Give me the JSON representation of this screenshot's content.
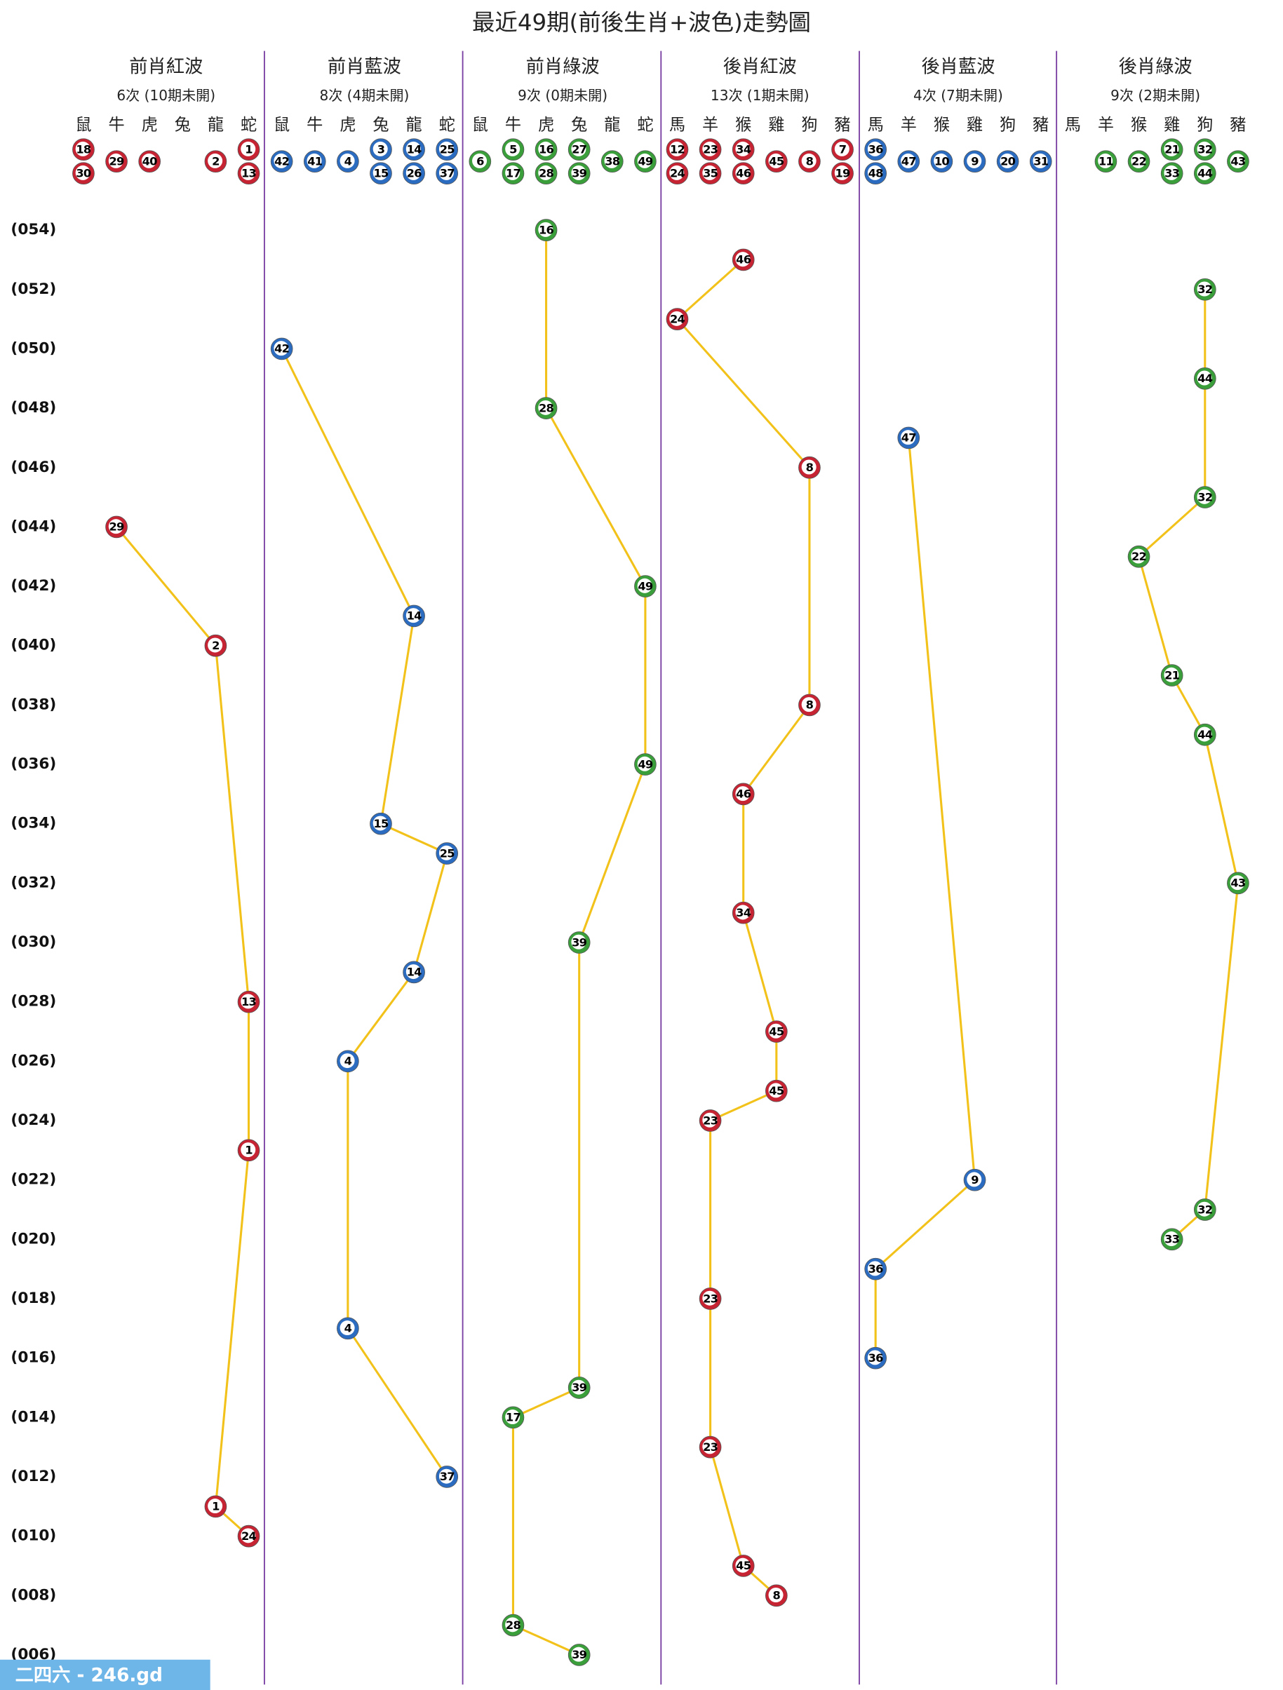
{
  "chart_data": {
    "type": "trend",
    "title": "最近49期(前後生肖+波色)走勢圖",
    "ylim": [
      55,
      5
    ],
    "yticks": [
      {
        "value": 54,
        "label": "(054)"
      },
      {
        "value": 52,
        "label": "(052)"
      },
      {
        "value": 50,
        "label": "(050)"
      },
      {
        "value": 48,
        "label": "(048)"
      },
      {
        "value": 46,
        "label": "(046)"
      },
      {
        "value": 44,
        "label": "(044)"
      },
      {
        "value": 42,
        "label": "(042)"
      },
      {
        "value": 40,
        "label": "(040)"
      },
      {
        "value": 38,
        "label": "(038)"
      },
      {
        "value": 36,
        "label": "(036)"
      },
      {
        "value": 34,
        "label": "(034)"
      },
      {
        "value": 32,
        "label": "(032)"
      },
      {
        "value": 30,
        "label": "(030)"
      },
      {
        "value": 28,
        "label": "(028)"
      },
      {
        "value": 26,
        "label": "(026)"
      },
      {
        "value": 24,
        "label": "(024)"
      },
      {
        "value": 22,
        "label": "(022)"
      },
      {
        "value": 20,
        "label": "(020)"
      },
      {
        "value": 18,
        "label": "(018)"
      },
      {
        "value": 16,
        "label": "(016)"
      },
      {
        "value": 14,
        "label": "(014)"
      },
      {
        "value": 12,
        "label": "(012)"
      },
      {
        "value": 10,
        "label": "(010)"
      },
      {
        "value": 8,
        "label": "(008)"
      },
      {
        "value": 6,
        "label": "(006)"
      }
    ],
    "line_color": "#f2c21b",
    "watermark": "二四六 - 246.gd",
    "panels": [
      {
        "name": "前肖紅波",
        "summary": "6次 (10期未開)",
        "color": "#c62333",
        "zodiacs": [
          "鼠",
          "牛",
          "虎",
          "兔",
          "龍",
          "蛇"
        ],
        "header_numbers": [
          [
            18,
            30
          ],
          [
            29
          ],
          [
            40
          ],
          [],
          [
            2
          ],
          [
            1,
            13
          ]
        ],
        "points": [
          {
            "period": 44,
            "zodiac": "牛",
            "number": 29
          },
          {
            "period": 40,
            "zodiac": "龍",
            "number": 2
          },
          {
            "period": 28,
            "zodiac": "蛇",
            "number": 13
          },
          {
            "period": 23,
            "zodiac": "蛇",
            "number": 1
          },
          {
            "period": 11,
            "zodiac": "龍",
            "number": 1
          },
          {
            "period": 10,
            "zodiac": "蛇",
            "number": 24
          }
        ]
      },
      {
        "name": "前肖藍波",
        "summary": "8次 (4期未開)",
        "color": "#2b6cc0",
        "zodiacs": [
          "鼠",
          "牛",
          "虎",
          "兔",
          "龍",
          "蛇"
        ],
        "header_numbers": [
          [
            42
          ],
          [
            41
          ],
          [
            4
          ],
          [
            3,
            15
          ],
          [
            14,
            26
          ],
          [
            25,
            37
          ]
        ],
        "points": [
          {
            "period": 50,
            "zodiac": "鼠",
            "number": 42
          },
          {
            "period": 41,
            "zodiac": "龍",
            "number": 14
          },
          {
            "period": 34,
            "zodiac": "兔",
            "number": 15
          },
          {
            "period": 33,
            "zodiac": "蛇",
            "number": 25
          },
          {
            "period": 29,
            "zodiac": "龍",
            "number": 14
          },
          {
            "period": 26,
            "zodiac": "虎",
            "number": 4
          },
          {
            "period": 17,
            "zodiac": "虎",
            "number": 4
          },
          {
            "period": 12,
            "zodiac": "蛇",
            "number": 37
          }
        ]
      },
      {
        "name": "前肖綠波",
        "summary": "9次 (0期未開)",
        "color": "#3a9e3a",
        "zodiacs": [
          "鼠",
          "牛",
          "虎",
          "兔",
          "龍",
          "蛇"
        ],
        "header_numbers": [
          [
            6
          ],
          [
            5,
            17
          ],
          [
            16,
            28
          ],
          [
            27,
            39
          ],
          [
            38
          ],
          [
            49
          ]
        ],
        "points": [
          {
            "period": 54,
            "zodiac": "虎",
            "number": 16
          },
          {
            "period": 48,
            "zodiac": "虎",
            "number": 28
          },
          {
            "period": 42,
            "zodiac": "蛇",
            "number": 49
          },
          {
            "period": 36,
            "zodiac": "蛇",
            "number": 49
          },
          {
            "period": 30,
            "zodiac": "兔",
            "number": 39
          },
          {
            "period": 15,
            "zodiac": "兔",
            "number": 39
          },
          {
            "period": 14,
            "zodiac": "牛",
            "number": 17
          },
          {
            "period": 7,
            "zodiac": "牛",
            "number": 28
          },
          {
            "period": 6,
            "zodiac": "兔",
            "number": 39
          }
        ]
      },
      {
        "name": "後肖紅波",
        "summary": "13次 (1期未開)",
        "color": "#c62333",
        "zodiacs": [
          "馬",
          "羊",
          "猴",
          "雞",
          "狗",
          "豬"
        ],
        "header_numbers": [
          [
            12,
            24
          ],
          [
            23,
            35
          ],
          [
            34,
            46
          ],
          [
            45
          ],
          [
            8
          ],
          [
            7,
            19
          ]
        ],
        "points": [
          {
            "period": 53,
            "zodiac": "猴",
            "number": 46
          },
          {
            "period": 51,
            "zodiac": "馬",
            "number": 24
          },
          {
            "period": 46,
            "zodiac": "狗",
            "number": 8
          },
          {
            "period": 38,
            "zodiac": "狗",
            "number": 8
          },
          {
            "period": 35,
            "zodiac": "猴",
            "number": 46
          },
          {
            "period": 31,
            "zodiac": "猴",
            "number": 34
          },
          {
            "period": 27,
            "zodiac": "雞",
            "number": 45
          },
          {
            "period": 25,
            "zodiac": "雞",
            "number": 45
          },
          {
            "period": 24,
            "zodiac": "羊",
            "number": 23
          },
          {
            "period": 18,
            "zodiac": "羊",
            "number": 23
          },
          {
            "period": 13,
            "zodiac": "羊",
            "number": 23
          },
          {
            "period": 9,
            "zodiac": "猴",
            "number": 45
          },
          {
            "period": 8,
            "zodiac": "雞",
            "number": 8
          }
        ]
      },
      {
        "name": "後肖藍波",
        "summary": "4次 (7期未開)",
        "color": "#2b6cc0",
        "zodiacs": [
          "馬",
          "羊",
          "猴",
          "雞",
          "狗",
          "豬"
        ],
        "header_numbers": [
          [
            36,
            48
          ],
          [
            47
          ],
          [
            10
          ],
          [
            9
          ],
          [
            20
          ],
          [
            31
          ]
        ],
        "points": [
          {
            "period": 47,
            "zodiac": "羊",
            "number": 47
          },
          {
            "period": 22,
            "zodiac": "雞",
            "number": 9
          },
          {
            "period": 19,
            "zodiac": "馬",
            "number": 36
          },
          {
            "period": 16,
            "zodiac": "馬",
            "number": 36
          }
        ]
      },
      {
        "name": "後肖綠波",
        "summary": "9次 (2期未開)",
        "color": "#3a9e3a",
        "zodiacs": [
          "馬",
          "羊",
          "猴",
          "雞",
          "狗",
          "豬"
        ],
        "header_numbers": [
          [],
          [
            11
          ],
          [
            22
          ],
          [
            21,
            33
          ],
          [
            32,
            44
          ],
          [
            43
          ]
        ],
        "points": [
          {
            "period": 52,
            "zodiac": "狗",
            "number": 32
          },
          {
            "period": 49,
            "zodiac": "狗",
            "number": 44
          },
          {
            "period": 45,
            "zodiac": "狗",
            "number": 32
          },
          {
            "period": 43,
            "zodiac": "猴",
            "number": 22
          },
          {
            "period": 39,
            "zodiac": "雞",
            "number": 21
          },
          {
            "period": 37,
            "zodiac": "狗",
            "number": 44
          },
          {
            "period": 32,
            "zodiac": "豬",
            "number": 43
          },
          {
            "period": 21,
            "zodiac": "狗",
            "number": 32
          },
          {
            "period": 20,
            "zodiac": "雞",
            "number": 33
          }
        ]
      }
    ]
  }
}
